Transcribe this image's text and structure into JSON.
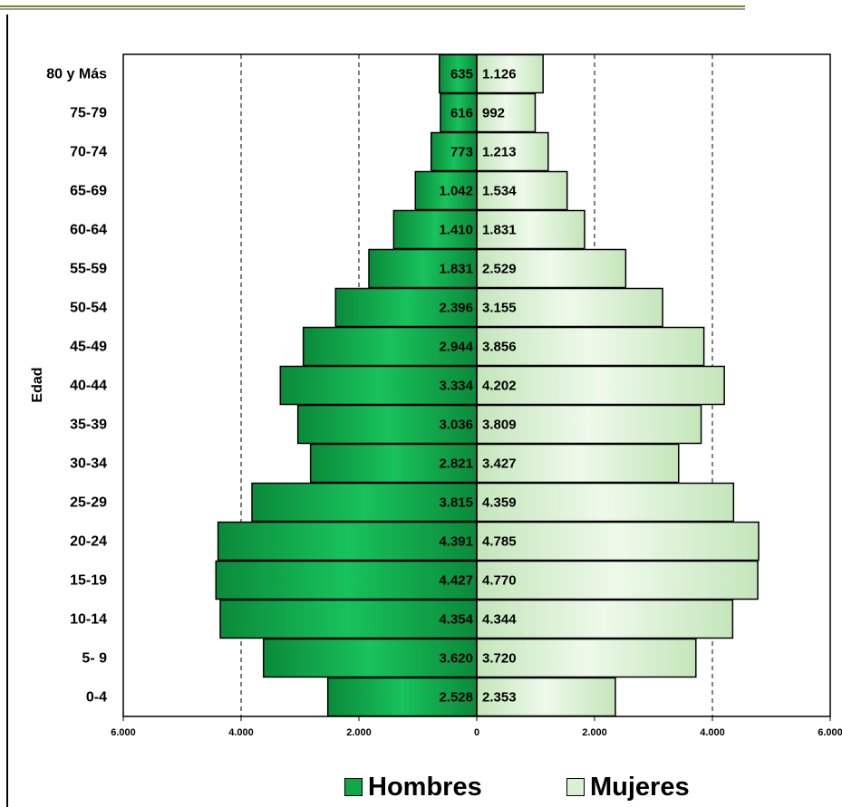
{
  "chart_data": {
    "type": "bar",
    "orientation": "horizontal-pyramid",
    "ylabel": "Edad",
    "categories": [
      "80 y Más",
      "75-79",
      "70-74",
      "65-69",
      "60-64",
      "55-59",
      "50-54",
      "45-49",
      "40-44",
      "35-39",
      "30-34",
      "25-29",
      "20-24",
      "15-19",
      "10-14",
      "5- 9",
      "0-4"
    ],
    "series": [
      {
        "name": "Hombres",
        "side": "left",
        "color": "#0fa847",
        "values": [
          635,
          616,
          773,
          1042,
          1410,
          1831,
          2396,
          2944,
          3334,
          3036,
          2821,
          3815,
          4391,
          4427,
          4354,
          3620,
          2528
        ],
        "labels": [
          "635",
          "616",
          "773",
          "1.042",
          "1.410",
          "1.831",
          "2.396",
          "2.944",
          "3.334",
          "3.036",
          "2.821",
          "3.815",
          "4.391",
          "4.427",
          "4.354",
          "3.620",
          "2.528"
        ]
      },
      {
        "name": "Mujeres",
        "side": "right",
        "color": "#d9f0d2",
        "values": [
          1126,
          992,
          1213,
          1534,
          1831,
          2529,
          3155,
          3856,
          4202,
          3809,
          3427,
          4359,
          4785,
          4770,
          4344,
          3720,
          2353
        ],
        "labels": [
          "1.126",
          "992",
          "1.213",
          "1.534",
          "1.831",
          "2.529",
          "3.155",
          "3.856",
          "4.202",
          "3.809",
          "3.427",
          "4.359",
          "4.785",
          "4.770",
          "4.344",
          "3.720",
          "2.353"
        ]
      }
    ],
    "xlim": [
      -6000,
      6000
    ],
    "xticks": [
      -6000,
      -4000,
      -2000,
      0,
      2000,
      4000,
      6000
    ],
    "xtick_labels": [
      "6.000",
      "4.000",
      "2.000",
      "0",
      "2.000",
      "4.000",
      "6.000"
    ],
    "grid": "vertical-dashed",
    "legend_position": "bottom"
  },
  "colors": {
    "top_rule": "#6b8e23",
    "frame_rule": "#000000"
  }
}
